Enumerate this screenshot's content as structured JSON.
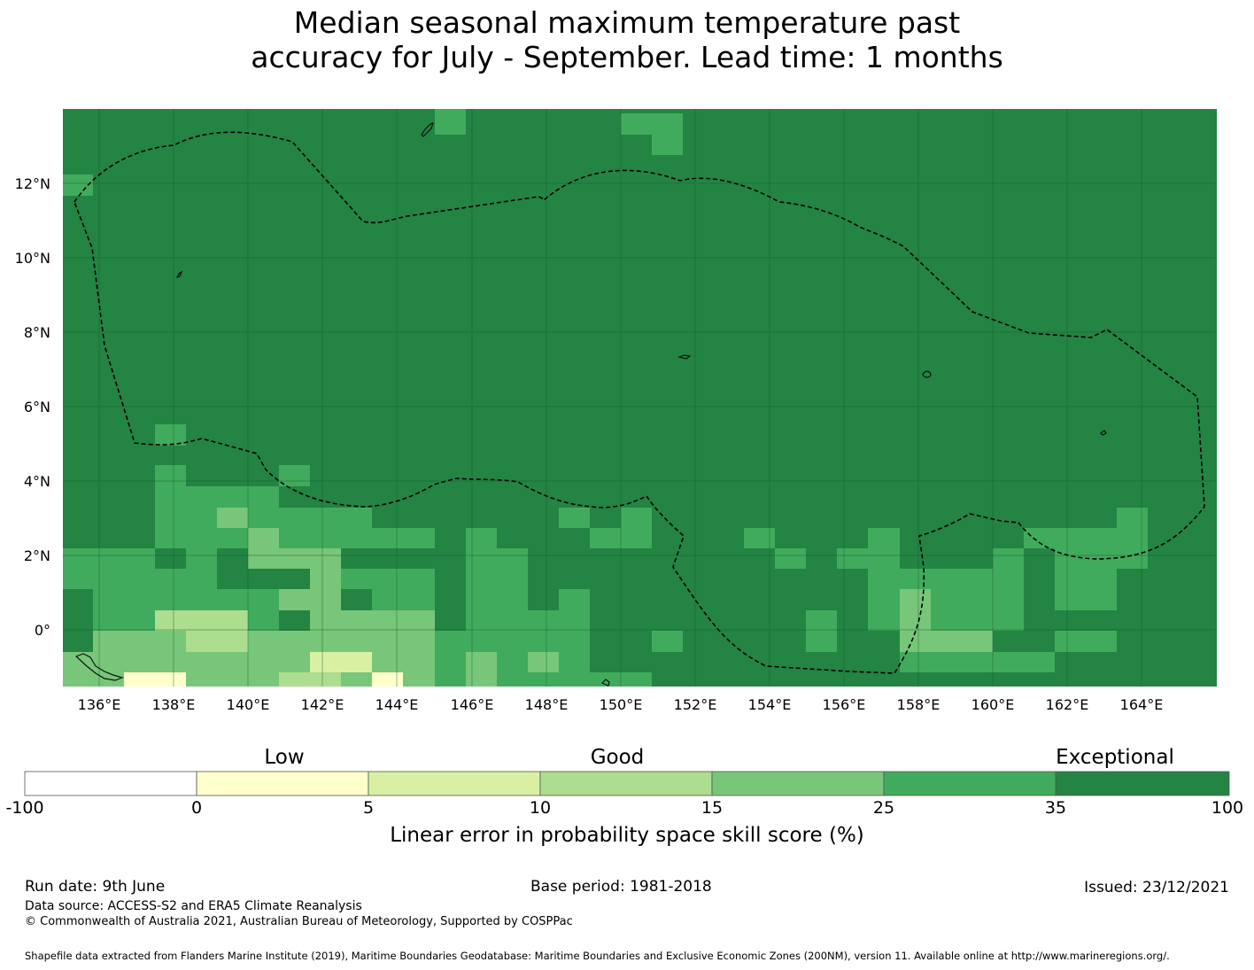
{
  "title": {
    "line1": "Median seasonal maximum temperature past",
    "line2": "accuracy for July - September. Lead time: 1 months"
  },
  "map": {
    "background_color": "#238443",
    "lon_labels": [
      "136°E",
      "138°E",
      "140°E",
      "142°E",
      "144°E",
      "146°E",
      "148°E",
      "150°E",
      "152°E",
      "154°E",
      "156°E",
      "158°E",
      "160°E",
      "162°E",
      "164°E"
    ],
    "lat_labels": [
      "12°N",
      "10°N",
      "8°N",
      "6°N",
      "4°N",
      "2°N",
      "0°"
    ],
    "boundary_style": "dashed black line (exclusive economic zone)"
  },
  "colorbar": {
    "categories": [
      "Low",
      "Good",
      "Exceptional"
    ],
    "tick_labels": [
      "-100",
      "0",
      "5",
      "10",
      "15",
      "25",
      "35",
      "100"
    ],
    "colors": [
      "#ffffff",
      "#ffffcc",
      "#d9f0a3",
      "#addd8e",
      "#78c679",
      "#41ab5d",
      "#238443"
    ],
    "label": "Linear error in probability space skill score (%)"
  },
  "footer": {
    "run_date": "Run date: 9th June",
    "base_period": "Base period: 1981-2018",
    "issued": "Issued: 23/12/2021",
    "data_source": "Data source: ACCESS-S2 and ERA5 Climate Reanalysis",
    "copyright": "© Commonwealth of Australia 2021, Australian Bureau of Meteorology, Supported by COSPPac",
    "shapefile": "Shapefile data extracted from Flanders Marine Institute (2019), Maritime Boundaries Geodatabase: Maritime Boundaries and Exclusive Economic Zones (200NM), version 11. Available online at http://www.marineregions.org/."
  }
}
